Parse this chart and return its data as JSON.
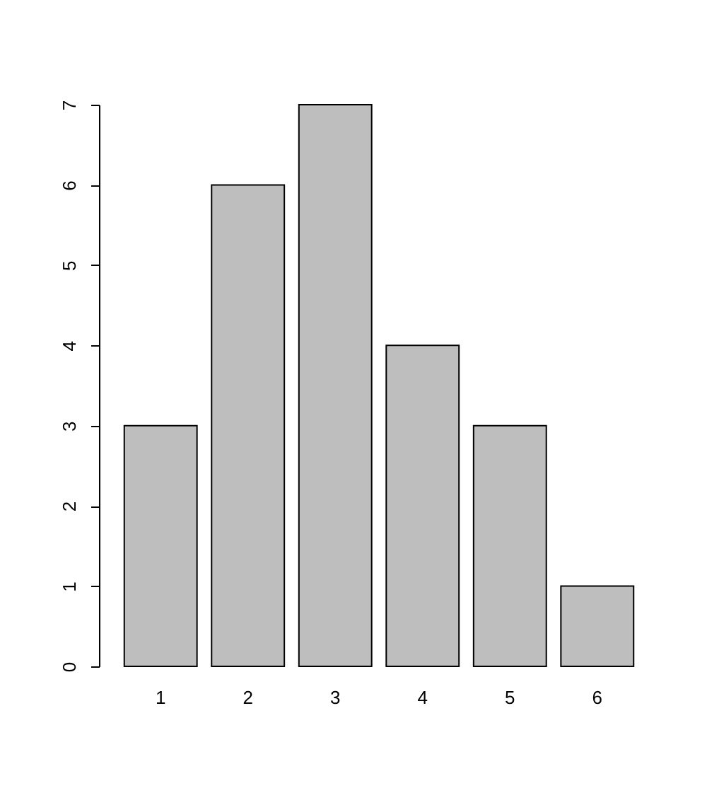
{
  "chart_data": {
    "type": "bar",
    "categories": [
      "1",
      "2",
      "3",
      "4",
      "5",
      "6"
    ],
    "values": [
      3,
      6,
      7,
      4,
      3,
      1
    ],
    "color": "#bebebe",
    "ylim": [
      0,
      7
    ],
    "yticks": [
      0,
      1,
      2,
      3,
      4,
      5,
      6,
      7
    ]
  }
}
